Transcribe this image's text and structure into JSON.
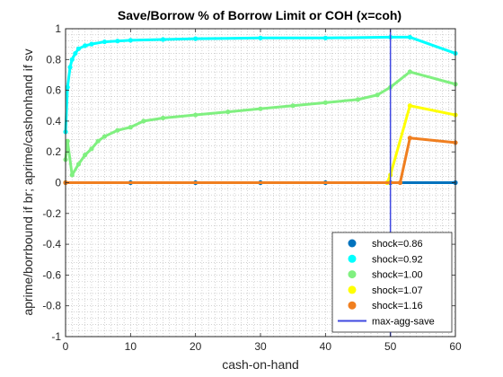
{
  "chart_data": {
    "type": "scatter",
    "title": "Save/Borrow % of Borrow Limit or COH (x=coh)",
    "xlabel": "cash-on-hand",
    "ylabel": "aprime/borrbound if br; aprime/cashonhand if sv",
    "xlim": [
      0,
      60
    ],
    "ylim": [
      -1,
      1
    ],
    "xticks": [
      "0",
      "10",
      "20",
      "30",
      "40",
      "50",
      "60"
    ],
    "yticks": [
      "-1",
      "-0.8",
      "-0.6",
      "-0.4",
      "-0.2",
      "0",
      "0.2",
      "0.4",
      "0.6",
      "0.8",
      "1"
    ],
    "grid": "minor-dotted",
    "legend_position": "bottom-right",
    "series": [
      {
        "name": "shock=0.86",
        "color": "#0072BD",
        "x": [
          0,
          10,
          20,
          30,
          40,
          50,
          60
        ],
        "y": [
          0,
          0,
          0,
          0,
          0,
          0,
          0
        ]
      },
      {
        "name": "shock=0.92",
        "color": "#00FFFF",
        "x": [
          0,
          0.3,
          0.7,
          1,
          1.5,
          2,
          3,
          4,
          6,
          8,
          10,
          15,
          20,
          30,
          40,
          50,
          53,
          60
        ],
        "y": [
          0.33,
          0.62,
          0.75,
          0.8,
          0.84,
          0.87,
          0.89,
          0.9,
          0.915,
          0.92,
          0.925,
          0.93,
          0.935,
          0.94,
          0.94,
          0.945,
          0.945,
          0.84
        ]
      },
      {
        "name": "shock=1.00",
        "color": "#80F080",
        "x": [
          0,
          0.3,
          1,
          2,
          3,
          4,
          5,
          6,
          8,
          10,
          12,
          15,
          20,
          25,
          30,
          35,
          40,
          45,
          48,
          50,
          53,
          60
        ],
        "y": [
          0.15,
          0.27,
          0.05,
          0.12,
          0.18,
          0.22,
          0.27,
          0.3,
          0.34,
          0.36,
          0.4,
          0.42,
          0.44,
          0.46,
          0.48,
          0.5,
          0.52,
          0.54,
          0.57,
          0.62,
          0.72,
          0.64
        ]
      },
      {
        "name": "shock=1.07",
        "color": "#FFFF00",
        "x": [
          0,
          49.5,
          50,
          53,
          60
        ],
        "y": [
          0,
          0,
          0.05,
          0.5,
          0.44
        ]
      },
      {
        "name": "shock=1.16",
        "color": "#F07F20",
        "x": [
          0,
          51.5,
          53,
          60
        ],
        "y": [
          0,
          0,
          0.29,
          0.26
        ]
      }
    ],
    "vline": {
      "name": "max-agg-save",
      "x": 50,
      "color": "#3F48E0"
    }
  }
}
